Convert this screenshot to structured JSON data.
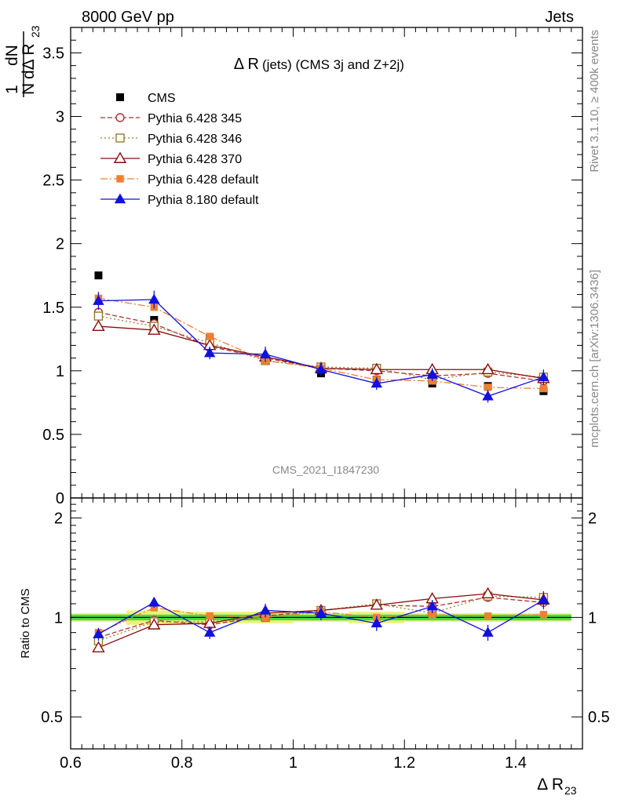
{
  "header": {
    "left": "8000 GeV pp",
    "right": "Jets"
  },
  "side_labels": {
    "rivet": "Rivet 3.1.10, ≥ 400k events",
    "mcplots": "mcplots.cern.ch [arXiv:1306.3436]"
  },
  "watermark": "CMS_2021_I1847230",
  "colors": {
    "cms": "#000000",
    "py345": "#b03030",
    "py346": "#9a7a2e",
    "py370": "#8b0d0d",
    "py6def": "#f08030",
    "py8": "#1010e0",
    "band_inner": "#44dd44",
    "band_outer": "#eef07a"
  },
  "chart_data": [
    {
      "type": "scatter",
      "panel": "main",
      "title_main": "Δ R",
      "title_rest": " (jets) (CMS 3j and Z+2j)",
      "ylabel_parts": {
        "num": "1",
        "den": "N",
        "dN": "dN",
        "dR": "dΔ R",
        "sub": "23"
      },
      "ylim": [
        0,
        3.7
      ],
      "yticks": [
        0,
        0.5,
        1,
        1.5,
        2,
        2.5,
        3,
        3.5
      ],
      "ytick_labels": [
        "0",
        "0.5",
        "1",
        "1.5",
        "2",
        "2.5",
        "3",
        "3.5"
      ],
      "x": [
        0.65,
        0.75,
        0.85,
        0.95,
        1.05,
        1.15,
        1.25,
        1.35,
        1.45
      ],
      "series": [
        {
          "name": "CMS",
          "key": "cms",
          "values": [
            1.75,
            1.4,
            1.26,
            1.08,
            0.98,
            0.93,
            0.9,
            0.88,
            0.84
          ]
        },
        {
          "name": "Pythia 6.428 345",
          "key": "py345",
          "values": [
            1.46,
            1.37,
            1.19,
            1.1,
            1.02,
            1.0,
            0.96,
            0.98,
            0.92
          ],
          "errors": [
            0.03,
            0.03,
            0.02,
            0.02,
            0.02,
            0.02,
            0.02,
            0.02,
            0.02
          ]
        },
        {
          "name": "Pythia 6.428 346",
          "key": "py346",
          "values": [
            1.43,
            1.35,
            1.22,
            1.08,
            1.03,
            1.02,
            0.93,
            0.99,
            0.95
          ],
          "errors": [
            0.03,
            0.03,
            0.02,
            0.02,
            0.02,
            0.02,
            0.02,
            0.02,
            0.02
          ]
        },
        {
          "name": "Pythia 6.428 370",
          "key": "py370",
          "values": [
            1.35,
            1.32,
            1.2,
            1.11,
            1.02,
            1.01,
            1.01,
            1.01,
            0.94
          ],
          "errors": [
            0.03,
            0.03,
            0.02,
            0.02,
            0.02,
            0.02,
            0.02,
            0.02,
            0.02
          ]
        },
        {
          "name": "Pythia 6.428 default",
          "key": "py6def",
          "values": [
            1.57,
            1.5,
            1.27,
            1.08,
            1.02,
            0.93,
            0.92,
            0.87,
            0.86
          ],
          "errors": [
            0.03,
            0.03,
            0.02,
            0.02,
            0.02,
            0.02,
            0.02,
            0.02,
            0.02
          ]
        },
        {
          "name": "Pythia 8.180 default",
          "key": "py8",
          "values": [
            1.55,
            1.56,
            1.14,
            1.13,
            1.01,
            0.9,
            0.97,
            0.8,
            0.95
          ],
          "errors": [
            0.07,
            0.07,
            0.05,
            0.06,
            0.05,
            0.05,
            0.05,
            0.05,
            0.06
          ]
        }
      ]
    },
    {
      "type": "scatter",
      "panel": "ratio",
      "ylabel": "Ratio to CMS",
      "ylim": [
        0.4,
        2.3
      ],
      "yscale": "log",
      "yticks": [
        0.5,
        1,
        2
      ],
      "ytick_labels": [
        "0.5",
        "1",
        "2"
      ],
      "xlabel_main": "Δ R",
      "xlabel_sub": "23",
      "xlim": [
        0.6,
        1.52
      ],
      "xticks": [
        0.6,
        0.8,
        1,
        1.2,
        1.4
      ],
      "xtick_labels": [
        "0.6",
        "0.8",
        "1",
        "1.2",
        "1.4"
      ],
      "x": [
        0.65,
        0.75,
        0.85,
        0.95,
        1.05,
        1.15,
        1.25,
        1.35,
        1.45
      ],
      "band": {
        "x_edges": [
          0.6,
          0.7,
          0.8,
          0.9,
          1.0,
          1.1,
          1.2,
          1.3,
          1.4,
          1.5
        ],
        "inner": [
          0.02,
          0.02,
          0.02,
          0.02,
          0.02,
          0.02,
          0.02,
          0.02,
          0.02
        ],
        "outer": [
          0.03,
          0.05,
          0.04,
          0.04,
          0.03,
          0.04,
          0.03,
          0.03,
          0.03
        ]
      },
      "series": [
        {
          "name": "Pythia 6.428 345",
          "key": "py345",
          "values": [
            0.87,
            0.98,
            0.95,
            1.01,
            1.05,
            1.09,
            1.08,
            1.15,
            1.11
          ],
          "errors": [
            0.02,
            0.02,
            0.02,
            0.02,
            0.02,
            0.02,
            0.02,
            0.02,
            0.03
          ]
        },
        {
          "name": "Pythia 6.428 346",
          "key": "py346",
          "values": [
            0.85,
            0.97,
            0.97,
            1.0,
            1.05,
            1.1,
            1.03,
            1.16,
            1.15
          ],
          "errors": [
            0.02,
            0.02,
            0.02,
            0.02,
            0.02,
            0.02,
            0.02,
            0.02,
            0.03
          ]
        },
        {
          "name": "Pythia 6.428 370",
          "key": "py370",
          "values": [
            0.81,
            0.95,
            0.96,
            1.03,
            1.05,
            1.09,
            1.14,
            1.18,
            1.13
          ],
          "errors": [
            0.02,
            0.02,
            0.02,
            0.02,
            0.02,
            0.02,
            0.02,
            0.02,
            0.03
          ]
        },
        {
          "name": "Pythia 6.428 default",
          "key": "py6def",
          "values": [
            0.9,
            1.07,
            1.01,
            1.0,
            1.04,
            1.0,
            1.02,
            1.01,
            1.02
          ],
          "errors": [
            0.02,
            0.02,
            0.02,
            0.02,
            0.02,
            0.02,
            0.02,
            0.02,
            0.03
          ]
        },
        {
          "name": "Pythia 8.180 default",
          "key": "py8",
          "values": [
            0.89,
            1.11,
            0.9,
            1.05,
            1.03,
            0.96,
            1.08,
            0.9,
            1.13
          ],
          "errors": [
            0.04,
            0.04,
            0.04,
            0.05,
            0.05,
            0.05,
            0.05,
            0.05,
            0.07
          ]
        }
      ]
    }
  ]
}
